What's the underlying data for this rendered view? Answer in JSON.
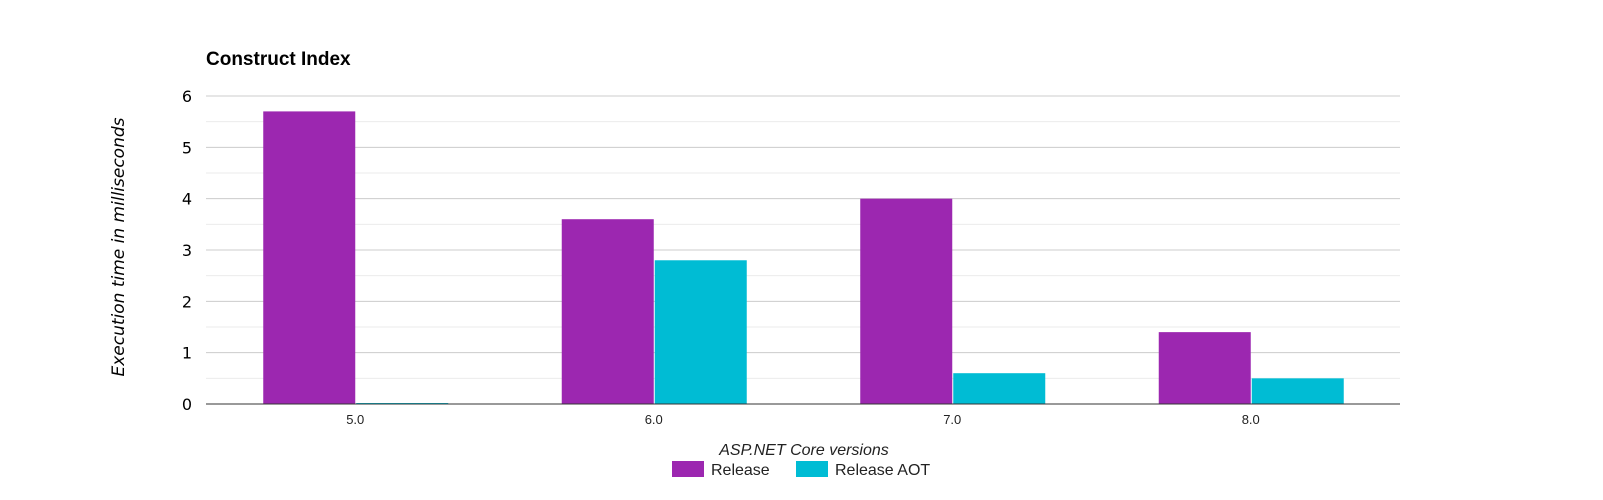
{
  "chart_data": {
    "type": "bar",
    "title": "Construct Index",
    "xlabel": "ASP.NET Core versions",
    "ylabel": "Execution time in milliseconds",
    "categories": [
      "5.0",
      "6.0",
      "7.0",
      "8.0"
    ],
    "series": [
      {
        "name": "Release",
        "color": "#9c27b0",
        "values": [
          5.7,
          3.6,
          4.0,
          1.4
        ]
      },
      {
        "name": "Release AOT",
        "color": "#00bcd4",
        "values": [
          0.0,
          2.8,
          0.6,
          0.5
        ]
      }
    ],
    "ylim": [
      0,
      6
    ],
    "yticks": [
      "0",
      "1",
      "2",
      "3",
      "4",
      "5",
      "6"
    ],
    "grid": true,
    "legend_position": "bottom"
  }
}
